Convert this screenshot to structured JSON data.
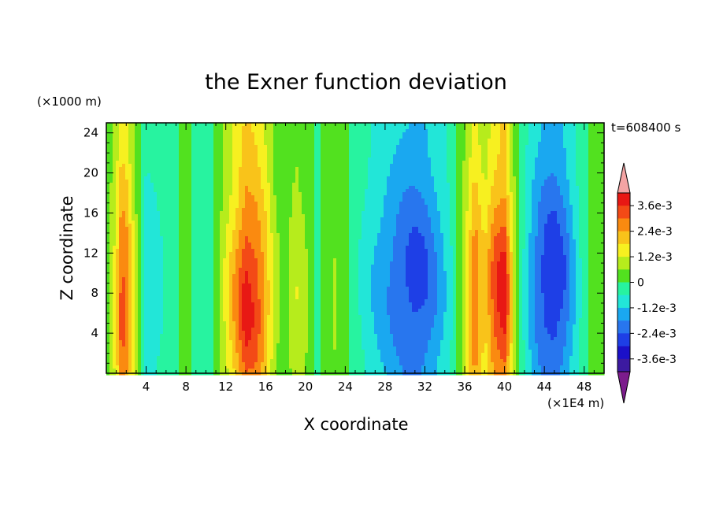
{
  "chart_data": {
    "type": "heatmap",
    "title": "the Exner function deviation",
    "xlabel": "X coordinate",
    "ylabel": "Z coordinate",
    "x_unit": "(×1E4 m)",
    "y_unit": "(×1000 m)",
    "time_label": "t=608400 s",
    "xlim": [
      0,
      50
    ],
    "ylim": [
      0,
      25
    ],
    "x_ticks": [
      4,
      8,
      12,
      16,
      20,
      24,
      28,
      32,
      36,
      40,
      44,
      48
    ],
    "y_ticks": [
      4,
      8,
      12,
      16,
      20,
      24
    ],
    "colorbar": {
      "levels": [
        -0.0042,
        -0.0036,
        -0.003,
        -0.0024,
        -0.0018,
        -0.0012,
        -0.0006,
        0,
        0.0006,
        0.0012,
        0.0018,
        0.0024,
        0.003,
        0.0036,
        0.0042
      ],
      "colors": [
        "#7c1c8c",
        "#3c1aa0",
        "#1b10c8",
        "#1e3fe6",
        "#2876ee",
        "#1aa8f0",
        "#22e6d8",
        "#27f3a0",
        "#52e11f",
        "#b6ec1c",
        "#f7f020",
        "#f9c31a",
        "#fa8a10",
        "#f34a16",
        "#e81814",
        "#f4a4a4"
      ],
      "tick_labels": [
        "-3.6e-3",
        "-2.4e-3",
        "-1.2e-3",
        "0",
        "1.2e-3",
        "2.4e-3",
        "3.6e-3"
      ],
      "tick_values": [
        -0.0036,
        -0.0024,
        -0.0012,
        0,
        0.0012,
        0.0024,
        0.0036
      ]
    },
    "field_profile": {
      "x_km_e4": [
        0,
        1,
        1.5,
        2,
        3,
        4,
        5,
        6,
        7,
        8,
        9,
        10,
        11,
        12,
        13,
        14,
        15,
        16,
        17,
        18,
        19,
        20,
        21,
        22,
        23,
        24,
        25,
        26,
        27,
        28,
        29,
        30,
        31,
        32,
        33,
        34,
        35,
        36,
        37,
        38,
        39,
        40,
        41,
        42,
        43,
        44,
        45,
        46,
        47,
        48,
        49,
        50
      ],
      "amplitude_max": [
        0.0002,
        0.0018,
        0.0034,
        0.0031,
        0.0008,
        -0.0011,
        -0.0009,
        -0.0005,
        -0.0002,
        0.0003,
        -0.0003,
        -0.0006,
        0.0002,
        0.0014,
        0.0026,
        0.0039,
        0.0035,
        0.0024,
        0.0008,
        0.0004,
        0.0012,
        0.0008,
        -0.0002,
        0.0002,
        0.0007,
        0.0004,
        -0.0004,
        -0.0009,
        -0.0013,
        -0.0017,
        -0.0021,
        -0.0025,
        -0.0027,
        -0.0025,
        -0.0019,
        -0.0012,
        -0.0004,
        0.0012,
        0.0031,
        0.0019,
        0.0034,
        0.004,
        0.001,
        -0.0008,
        -0.0019,
        -0.0027,
        -0.003,
        -0.0024,
        -0.0013,
        -0.0002,
        0.0004,
        0.0002
      ]
    }
  }
}
